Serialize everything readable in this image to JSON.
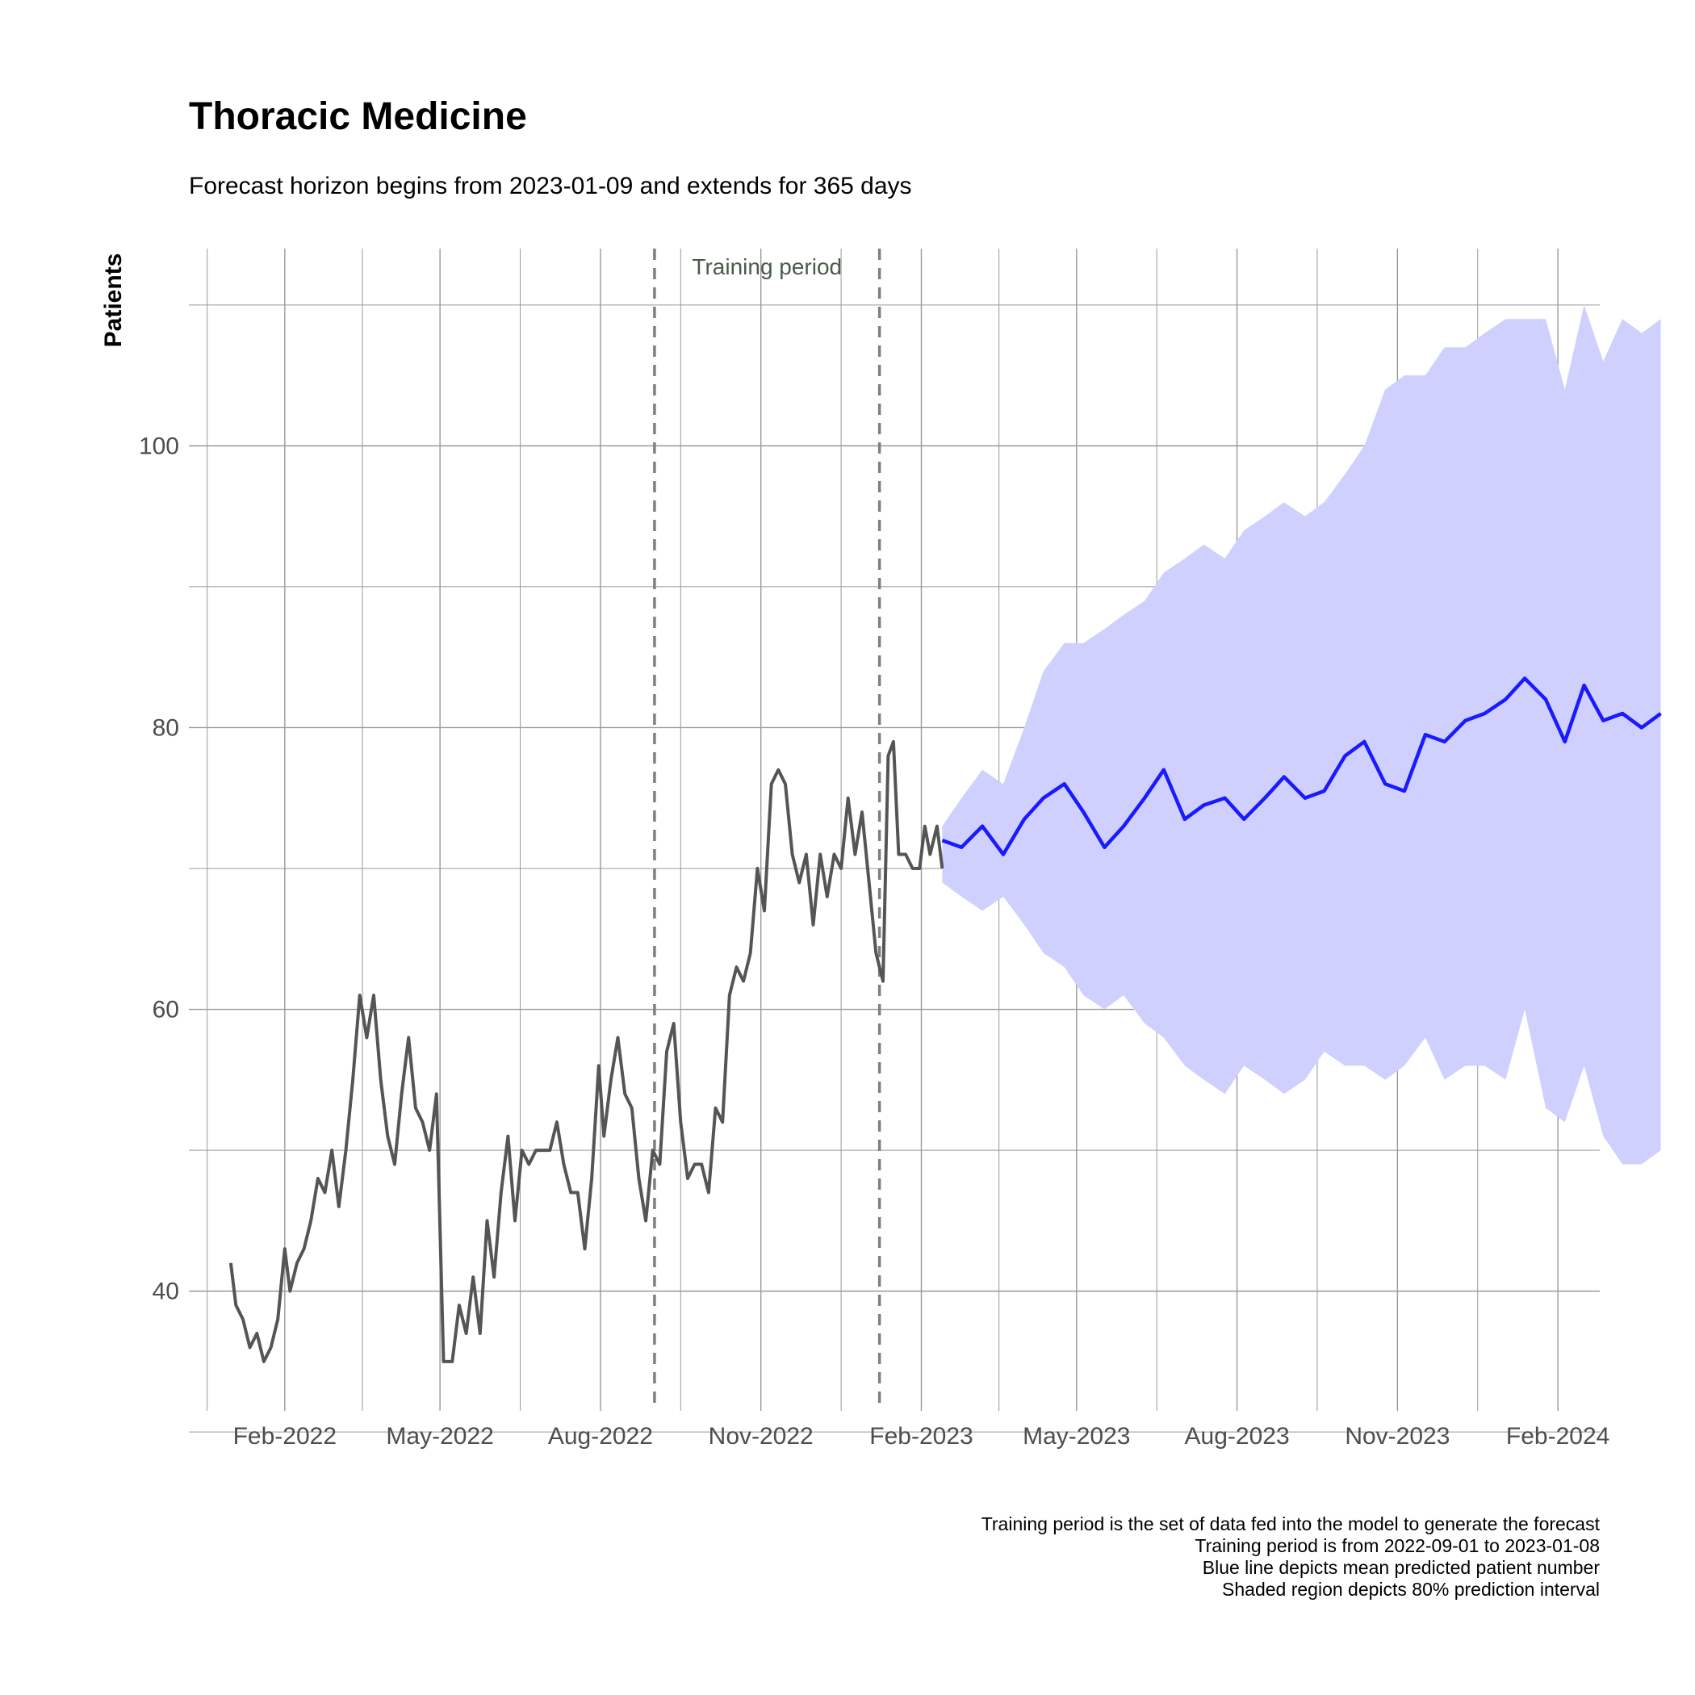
{
  "chart_data": {
    "type": "line",
    "title": "Thoracic Medicine",
    "subtitle": "Forecast horizon begins from 2023-01-09 and extends for 365 days",
    "xlabel": "",
    "ylabel": "Patients",
    "ylim": [
      31.5,
      114
    ],
    "xlim": [
      "2021-12-08",
      "2024-02-25"
    ],
    "x_ticks": [
      {
        "date": "2022-02-01",
        "label": "Feb-2022"
      },
      {
        "date": "2022-05-01",
        "label": "May-2022"
      },
      {
        "date": "2022-08-01",
        "label": "Aug-2022"
      },
      {
        "date": "2022-11-01",
        "label": "Nov-2022"
      },
      {
        "date": "2023-02-01",
        "label": "Feb-2023"
      },
      {
        "date": "2023-05-01",
        "label": "May-2023"
      },
      {
        "date": "2023-08-01",
        "label": "Aug-2023"
      },
      {
        "date": "2023-11-01",
        "label": "Nov-2023"
      },
      {
        "date": "2024-02-01",
        "label": "Feb-2024"
      }
    ],
    "y_ticks": [
      {
        "value": 40,
        "label": "40"
      },
      {
        "value": 60,
        "label": "60"
      },
      {
        "value": 80,
        "label": "80"
      },
      {
        "value": 100,
        "label": "100"
      }
    ],
    "grid": true,
    "training_period": {
      "start": "2022-09-01",
      "end": "2023-01-08",
      "label": "Training period"
    },
    "series": [
      {
        "role": "observed",
        "color": "#555555",
        "points": [
          [
            "2022-01-01",
            42
          ],
          [
            "2022-01-04",
            39
          ],
          [
            "2022-01-08",
            38
          ],
          [
            "2022-01-12",
            36
          ],
          [
            "2022-01-16",
            37
          ],
          [
            "2022-01-20",
            35
          ],
          [
            "2022-01-24",
            36
          ],
          [
            "2022-01-28",
            38
          ],
          [
            "2022-02-01",
            43
          ],
          [
            "2022-02-04",
            40
          ],
          [
            "2022-02-08",
            42
          ],
          [
            "2022-02-12",
            43
          ],
          [
            "2022-02-16",
            45
          ],
          [
            "2022-02-20",
            48
          ],
          [
            "2022-02-24",
            47
          ],
          [
            "2022-02-28",
            50
          ],
          [
            "2022-03-04",
            46
          ],
          [
            "2022-03-08",
            50
          ],
          [
            "2022-03-12",
            55
          ],
          [
            "2022-03-16",
            61
          ],
          [
            "2022-03-20",
            58
          ],
          [
            "2022-03-24",
            61
          ],
          [
            "2022-03-28",
            55
          ],
          [
            "2022-04-01",
            51
          ],
          [
            "2022-04-05",
            49
          ],
          [
            "2022-04-09",
            54
          ],
          [
            "2022-04-13",
            58
          ],
          [
            "2022-04-17",
            53
          ],
          [
            "2022-04-21",
            52
          ],
          [
            "2022-04-25",
            50
          ],
          [
            "2022-04-29",
            54
          ],
          [
            "2022-05-03",
            35
          ],
          [
            "2022-05-08",
            35
          ],
          [
            "2022-05-12",
            39
          ],
          [
            "2022-05-16",
            37
          ],
          [
            "2022-05-20",
            41
          ],
          [
            "2022-05-24",
            37
          ],
          [
            "2022-05-28",
            45
          ],
          [
            "2022-06-01",
            41
          ],
          [
            "2022-06-05",
            47
          ],
          [
            "2022-06-09",
            51
          ],
          [
            "2022-06-13",
            45
          ],
          [
            "2022-06-17",
            50
          ],
          [
            "2022-06-21",
            49
          ],
          [
            "2022-06-25",
            50
          ],
          [
            "2022-06-29",
            50
          ],
          [
            "2022-07-03",
            50
          ],
          [
            "2022-07-07",
            52
          ],
          [
            "2022-07-11",
            49
          ],
          [
            "2022-07-15",
            47
          ],
          [
            "2022-07-19",
            47
          ],
          [
            "2022-07-23",
            43
          ],
          [
            "2022-07-27",
            48
          ],
          [
            "2022-07-31",
            56
          ],
          [
            "2022-08-03",
            51
          ],
          [
            "2022-08-07",
            55
          ],
          [
            "2022-08-11",
            58
          ],
          [
            "2022-08-15",
            54
          ],
          [
            "2022-08-19",
            53
          ],
          [
            "2022-08-23",
            48
          ],
          [
            "2022-08-27",
            45
          ],
          [
            "2022-08-31",
            50
          ],
          [
            "2022-09-04",
            49
          ],
          [
            "2022-09-08",
            57
          ],
          [
            "2022-09-12",
            59
          ],
          [
            "2022-09-16",
            52
          ],
          [
            "2022-09-20",
            48
          ],
          [
            "2022-09-24",
            49
          ],
          [
            "2022-09-28",
            49
          ],
          [
            "2022-10-02",
            47
          ],
          [
            "2022-10-06",
            53
          ],
          [
            "2022-10-10",
            52
          ],
          [
            "2022-10-14",
            61
          ],
          [
            "2022-10-18",
            63
          ],
          [
            "2022-10-22",
            62
          ],
          [
            "2022-10-26",
            64
          ],
          [
            "2022-10-30",
            70
          ],
          [
            "2022-11-03",
            67
          ],
          [
            "2022-11-07",
            76
          ],
          [
            "2022-11-11",
            77
          ],
          [
            "2022-11-15",
            76
          ],
          [
            "2022-11-19",
            71
          ],
          [
            "2022-11-23",
            69
          ],
          [
            "2022-11-27",
            71
          ],
          [
            "2022-12-01",
            66
          ],
          [
            "2022-12-05",
            71
          ],
          [
            "2022-12-09",
            68
          ],
          [
            "2022-12-13",
            71
          ],
          [
            "2022-12-17",
            70
          ],
          [
            "2022-12-21",
            75
          ],
          [
            "2022-12-25",
            71
          ],
          [
            "2022-12-29",
            74
          ],
          [
            "2023-01-02",
            69
          ],
          [
            "2023-01-06",
            64
          ],
          [
            "2023-01-10",
            62
          ],
          [
            "2023-01-13",
            78
          ],
          [
            "2023-01-16",
            79
          ],
          [
            "2023-01-19",
            71
          ],
          [
            "2023-01-23",
            71
          ],
          [
            "2023-01-27",
            70
          ],
          [
            "2023-01-31",
            70
          ],
          [
            "2023-02-03",
            73
          ],
          [
            "2023-02-06",
            71
          ],
          [
            "2023-02-10",
            73
          ],
          [
            "2023-02-13",
            70
          ]
        ]
      },
      {
        "role": "forecast_mean",
        "label": "Blue line depicts mean predicted patient number",
        "color": "#1a1aff",
        "points": [
          [
            "2023-02-13",
            72
          ],
          [
            "2023-02-24",
            71.5
          ],
          [
            "2023-03-08",
            73
          ],
          [
            "2023-03-20",
            71
          ],
          [
            "2023-04-01",
            73.5
          ],
          [
            "2023-04-12",
            75
          ],
          [
            "2023-04-24",
            76
          ],
          [
            "2023-05-05",
            74
          ],
          [
            "2023-05-17",
            71.5
          ],
          [
            "2023-05-28",
            73
          ],
          [
            "2023-06-09",
            75
          ],
          [
            "2023-06-20",
            77
          ],
          [
            "2023-07-02",
            73.5
          ],
          [
            "2023-07-13",
            74.5
          ],
          [
            "2023-07-25",
            75
          ],
          [
            "2023-08-05",
            73.5
          ],
          [
            "2023-08-17",
            75
          ],
          [
            "2023-08-28",
            76.5
          ],
          [
            "2023-09-09",
            75
          ],
          [
            "2023-09-20",
            75.5
          ],
          [
            "2023-10-02",
            78
          ],
          [
            "2023-10-13",
            79
          ],
          [
            "2023-10-25",
            76
          ],
          [
            "2023-11-05",
            75.5
          ],
          [
            "2023-11-17",
            79.5
          ],
          [
            "2023-11-28",
            79
          ],
          [
            "2023-12-10",
            80.5
          ],
          [
            "2023-12-21",
            81
          ],
          [
            "2024-01-02",
            82
          ],
          [
            "2024-01-13",
            83.5
          ],
          [
            "2024-01-25",
            82
          ],
          [
            "2024-02-05",
            79
          ],
          [
            "2024-02-16",
            83
          ],
          [
            "2024-02-27",
            80.5
          ],
          [
            "2024-03-09",
            81
          ],
          [
            "2024-03-20",
            80
          ],
          [
            "2024-03-31",
            81
          ]
        ]
      }
    ],
    "interval": {
      "label": "Shaded region depicts 80% prediction interval",
      "color": "#d0d0ff",
      "points": [
        [
          "2023-02-13",
          69,
          73
        ],
        [
          "2023-02-24",
          68,
          75
        ],
        [
          "2023-03-08",
          67,
          77
        ],
        [
          "2023-03-20",
          68,
          76
        ],
        [
          "2023-04-01",
          66,
          80
        ],
        [
          "2023-04-12",
          64,
          84
        ],
        [
          "2023-04-24",
          63,
          86
        ],
        [
          "2023-05-05",
          61,
          86
        ],
        [
          "2023-05-17",
          60,
          87
        ],
        [
          "2023-05-28",
          61,
          88
        ],
        [
          "2023-06-09",
          59,
          89
        ],
        [
          "2023-06-20",
          58,
          91
        ],
        [
          "2023-07-02",
          56,
          92
        ],
        [
          "2023-07-13",
          55,
          93
        ],
        [
          "2023-07-25",
          54,
          92
        ],
        [
          "2023-08-05",
          56,
          94
        ],
        [
          "2023-08-17",
          55,
          95
        ],
        [
          "2023-08-28",
          54,
          96
        ],
        [
          "2023-09-09",
          55,
          95
        ],
        [
          "2023-09-20",
          57,
          96
        ],
        [
          "2023-10-02",
          56,
          98
        ],
        [
          "2023-10-13",
          56,
          100
        ],
        [
          "2023-10-25",
          55,
          104
        ],
        [
          "2023-11-05",
          56,
          105
        ],
        [
          "2023-11-17",
          58,
          105
        ],
        [
          "2023-11-28",
          55,
          107
        ],
        [
          "2023-12-10",
          56,
          107
        ],
        [
          "2023-12-21",
          56,
          108
        ],
        [
          "2024-01-02",
          55,
          109
        ],
        [
          "2024-01-13",
          60,
          109
        ],
        [
          "2024-01-25",
          53,
          109
        ],
        [
          "2024-02-05",
          52,
          104
        ],
        [
          "2024-02-16",
          56,
          110
        ],
        [
          "2024-02-27",
          51,
          106
        ],
        [
          "2024-03-09",
          49,
          109
        ],
        [
          "2024-03-20",
          49,
          108
        ],
        [
          "2024-03-31",
          50,
          109
        ]
      ]
    },
    "caption": [
      "Training period is the set of data fed into the model to generate the forecast",
      "Training period is from 2022-09-01 to 2023-01-08",
      "Blue line depicts mean predicted patient number",
      "Shaded region depicts 80% prediction interval"
    ]
  }
}
